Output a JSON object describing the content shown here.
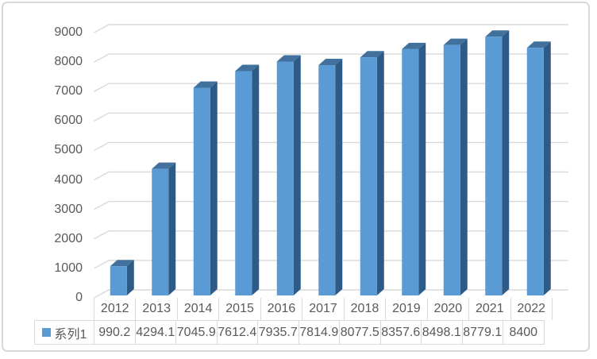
{
  "chart_data": {
    "type": "bar",
    "style": "3d-column",
    "title": "",
    "categories": [
      "2012",
      "2013",
      "2014",
      "2015",
      "2016",
      "2017",
      "2018",
      "2019",
      "2020",
      "2021",
      "2022"
    ],
    "series": [
      {
        "name": "系列1",
        "values": [
          990.2,
          4294.1,
          7045.9,
          7612.4,
          7935.7,
          7814.9,
          8077.5,
          8357.6,
          8498.1,
          8779.1,
          8400
        ]
      }
    ],
    "ylim": [
      0,
      9000
    ],
    "yticks": [
      0,
      1000,
      2000,
      3000,
      4000,
      5000,
      6000,
      7000,
      8000,
      9000
    ],
    "grid": true,
    "legend_position": "data-table-left",
    "data_table_shown": true
  },
  "legend": {
    "label": "系列1"
  },
  "colors": {
    "bar_front": "#5B9BD5",
    "bar_top": "#41719C",
    "bar_side": "#2E5A87",
    "gridline": "#D9D9D9",
    "axis_text": "#595959",
    "table_border": "#D9D9D9",
    "frame_border": "#D9D9D9",
    "legend_swatch": "#5B9BD5"
  }
}
